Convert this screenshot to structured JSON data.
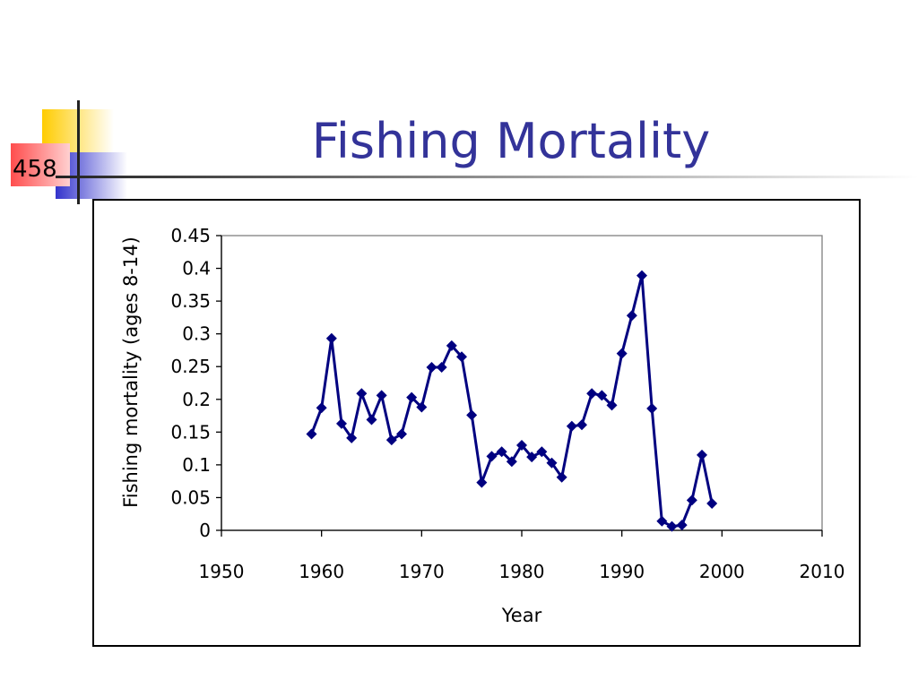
{
  "slide": {
    "number": "458",
    "title": "Fishing Mortality",
    "accent_colors": {
      "yellow": "#ffcc00",
      "red": "#ff4d4d",
      "blue": "#3333cc",
      "title": "#333399"
    }
  },
  "chart_data": {
    "type": "line",
    "title": "",
    "xlabel": "Year",
    "ylabel": "Fishing mortality (ages 8-14)",
    "xlim": [
      1950,
      2010
    ],
    "ylim": [
      0,
      0.45
    ],
    "x_ticks": [
      "1950",
      "1960",
      "1970",
      "1980",
      "1990",
      "2000",
      "2010"
    ],
    "y_ticks": [
      "0",
      "0.05",
      "0.1",
      "0.15",
      "0.2",
      "0.25",
      "0.3",
      "0.35",
      "0.4",
      "0.45"
    ],
    "grid": false,
    "legend": "none",
    "series_color": "#000080",
    "marker": "diamond",
    "series": [
      {
        "x": [
          1959,
          1960,
          1961,
          1962,
          1963,
          1964,
          1965,
          1966,
          1967,
          1968,
          1969,
          1970,
          1971,
          1972,
          1973,
          1974,
          1975,
          1976,
          1977,
          1978,
          1979,
          1980,
          1981,
          1982,
          1983,
          1984,
          1985,
          1986,
          1987,
          1988,
          1989,
          1990,
          1991,
          1992,
          1993,
          1994,
          1995,
          1996,
          1997,
          1998,
          1999
        ],
        "values": [
          0.147,
          0.187,
          0.293,
          0.163,
          0.141,
          0.209,
          0.169,
          0.206,
          0.138,
          0.147,
          0.203,
          0.188,
          0.249,
          0.249,
          0.282,
          0.265,
          0.176,
          0.073,
          0.113,
          0.12,
          0.105,
          0.13,
          0.112,
          0.12,
          0.103,
          0.081,
          0.159,
          0.161,
          0.209,
          0.206,
          0.191,
          0.27,
          0.328,
          0.389,
          0.186,
          0.014,
          0.006,
          0.008,
          0.046,
          0.115,
          0.041
        ]
      }
    ]
  }
}
